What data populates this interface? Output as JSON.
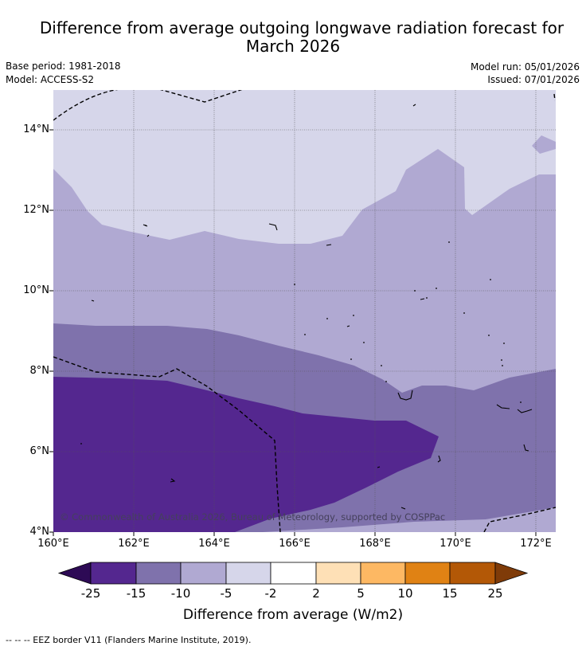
{
  "title_line1": "Difference from average outgoing longwave radiation forecast for",
  "title_line2": "March 2026",
  "meta": {
    "base_period": "Base period: 1981-2018",
    "model": "Model: ACCESS-S2",
    "model_run": "Model run: 05/01/2026",
    "issued": "Issued: 07/01/2026"
  },
  "map": {
    "lat_labels": [
      "14°N",
      "12°N",
      "10°N",
      "8°N",
      "6°N",
      "4°N"
    ],
    "lon_labels": [
      "160°E",
      "162°E",
      "164°E",
      "166°E",
      "168°E",
      "170°E",
      "172°E"
    ],
    "copyright": "© Commonwealth of Australia 2026, Bureau of Meteorology, supported by COSPPac"
  },
  "colorbar": {
    "labels": [
      "-25",
      "-15",
      "-10",
      "-5",
      "-2",
      "2",
      "5",
      "10",
      "15",
      "25"
    ],
    "colors": [
      "#2d0a55",
      "#54278f",
      "#7f72ac",
      "#b0a9d2",
      "#d6d6ea",
      "#ffffff",
      "#fee0b6",
      "#fdb863",
      "#e08214",
      "#b35806",
      "#7f3b08"
    ],
    "title": "Difference from average (W/m2)"
  },
  "footnote": "--  --  -- EEZ border V11 (Flanders Marine Institute, 2019)."
}
